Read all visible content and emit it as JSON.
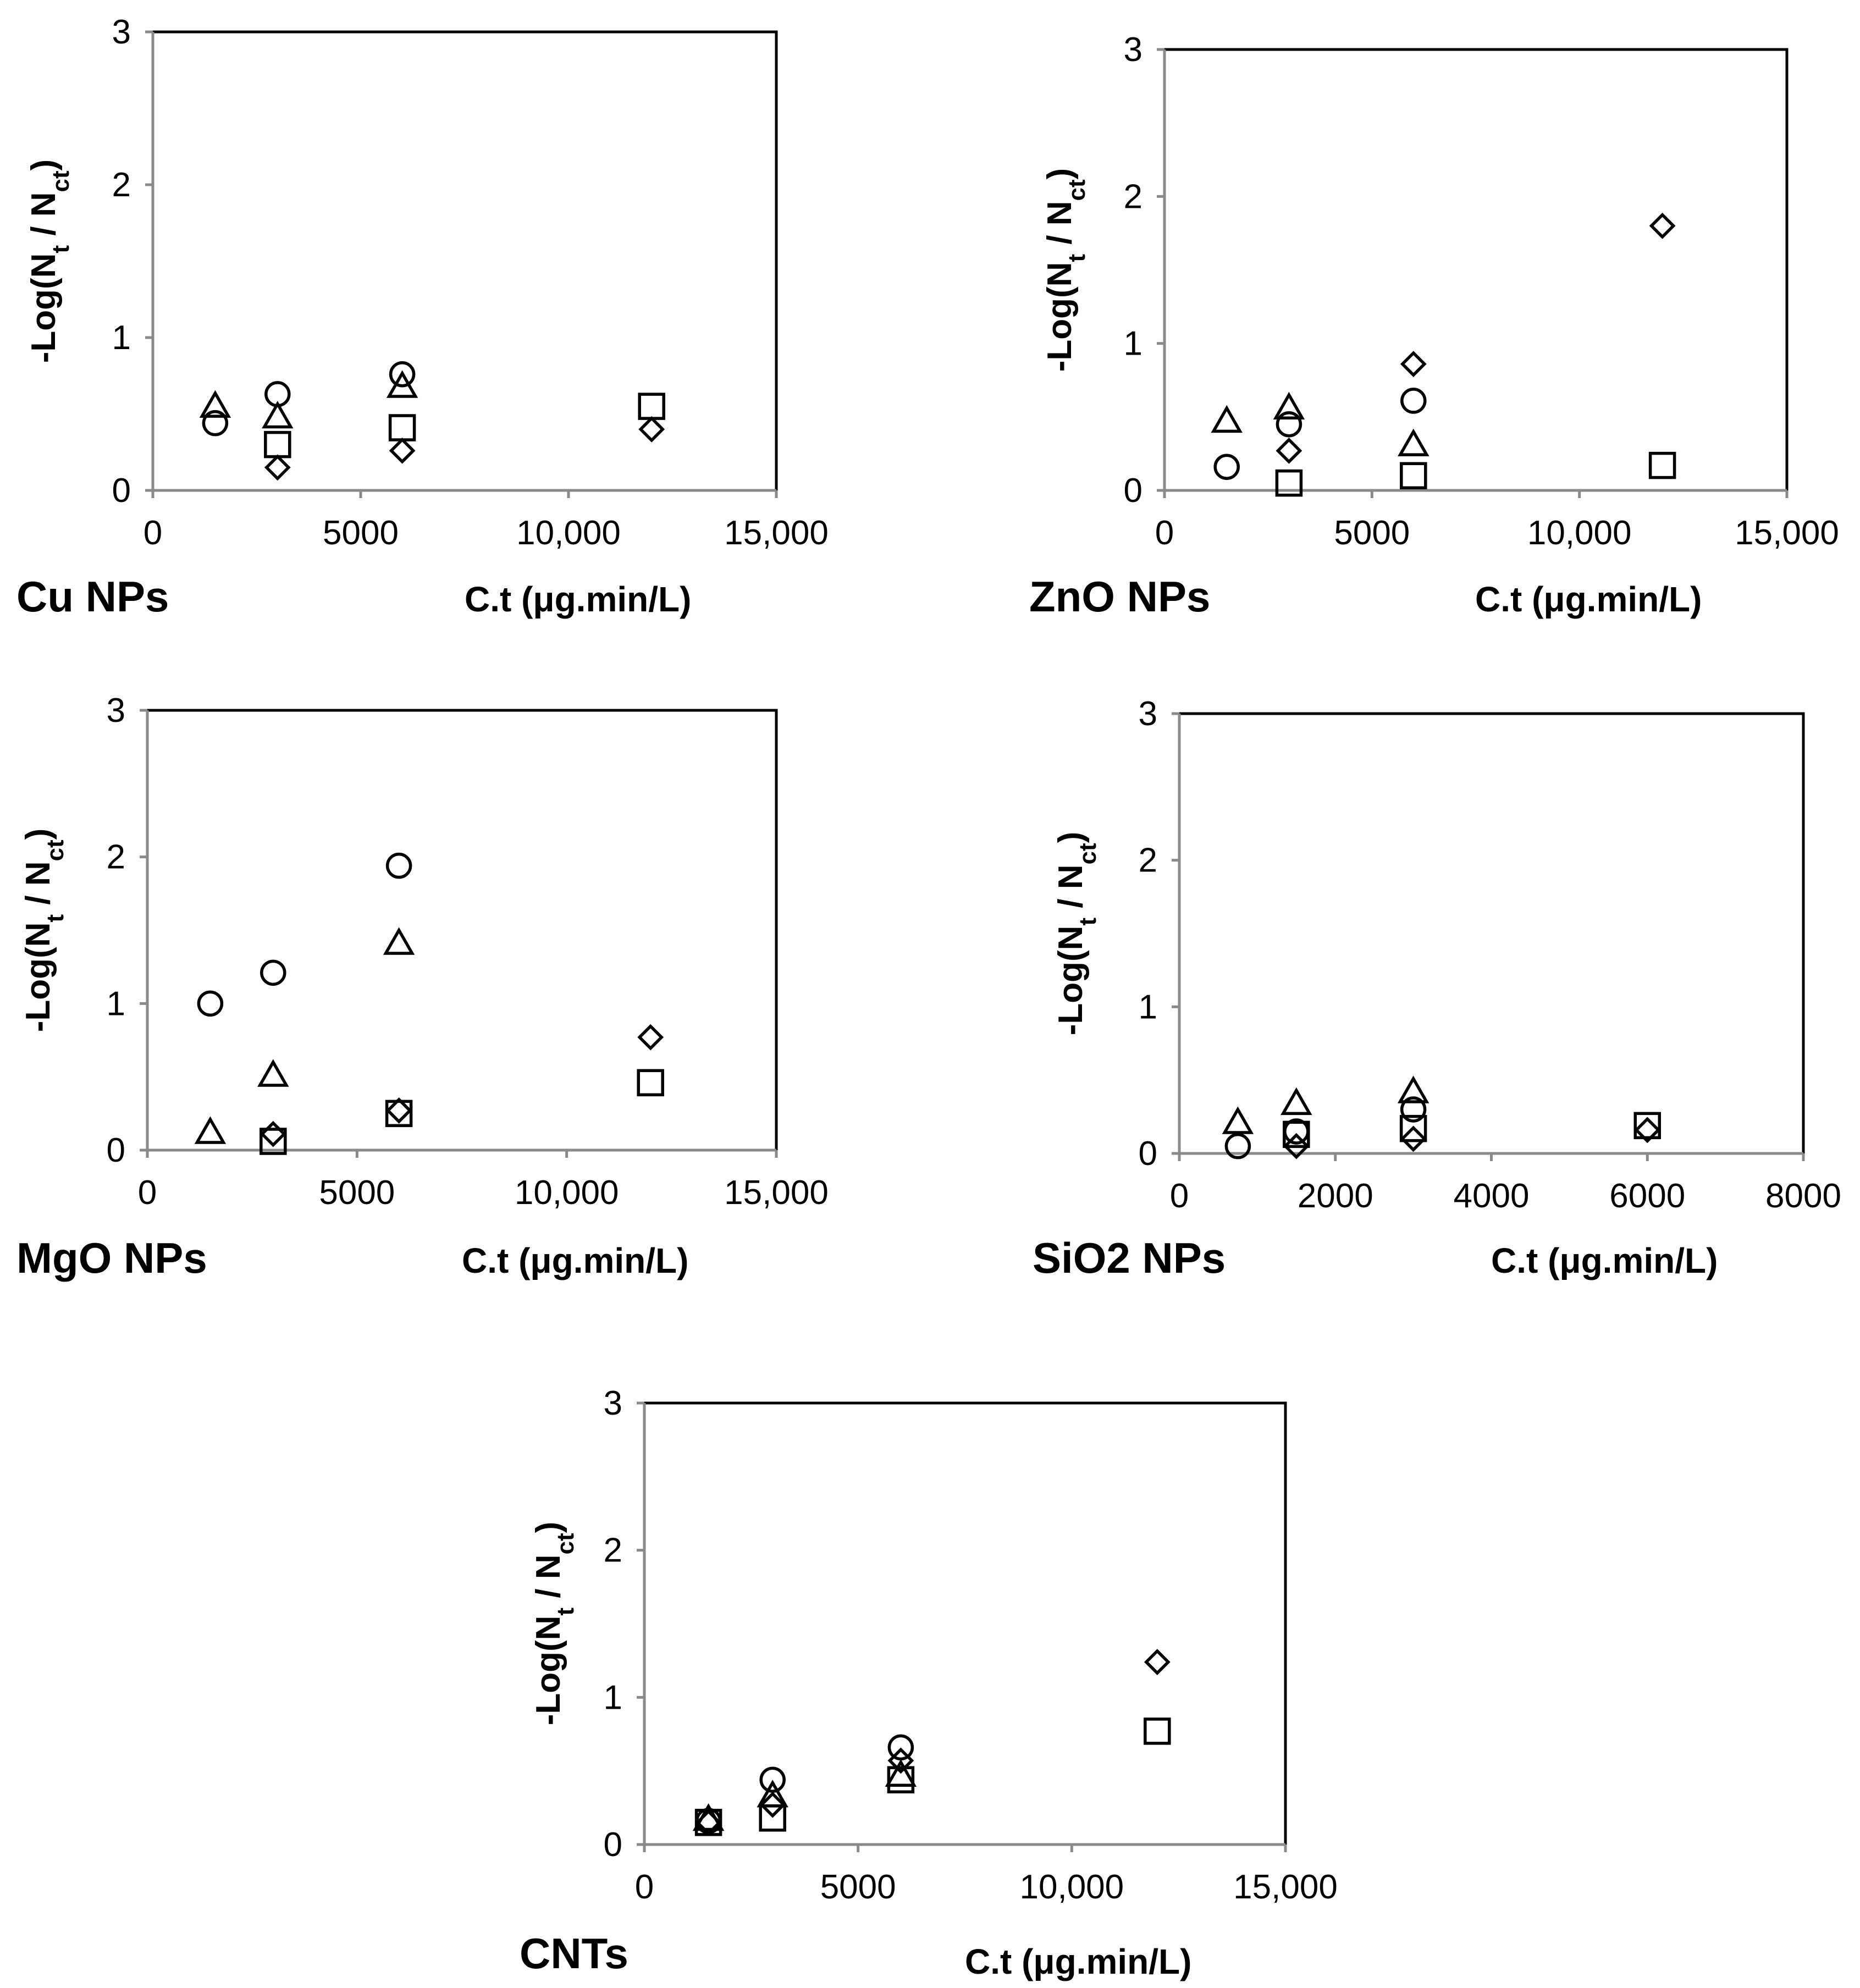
{
  "chart_data": [
    {
      "type": "scatter",
      "panel_label": "Cu NPs",
      "xlabel": "C.t (μg.min/L)",
      "ylabel_main": "-Log(N",
      "ylabel_sub1": "t",
      "ylabel_mid": " / N",
      "ylabel_sub2": "ct",
      "ylabel_end": ")",
      "xlim": [
        0,
        15000
      ],
      "ylim": [
        0,
        3
      ],
      "xticks": [
        0,
        5000,
        10000,
        15000
      ],
      "xtick_labels": [
        "0",
        "5000",
        "10,000",
        "15,000"
      ],
      "yticks": [
        0,
        1,
        2,
        3
      ],
      "ytick_labels": [
        "0",
        "1",
        "2",
        "3"
      ],
      "series": [
        {
          "name": "circle",
          "marker": "circle",
          "x": [
            1500,
            3000,
            6000
          ],
          "y": [
            0.44,
            0.63,
            0.76
          ]
        },
        {
          "name": "triangle",
          "marker": "triangle",
          "x": [
            1500,
            3000,
            6000
          ],
          "y": [
            0.55,
            0.48,
            0.68
          ]
        },
        {
          "name": "square",
          "marker": "square",
          "x": [
            3000,
            6000,
            12000
          ],
          "y": [
            0.3,
            0.41,
            0.55
          ]
        },
        {
          "name": "diamond",
          "marker": "diamond",
          "x": [
            3000,
            6000,
            12000
          ],
          "y": [
            0.15,
            0.26,
            0.4
          ]
        }
      ]
    },
    {
      "type": "scatter",
      "panel_label": "ZnO NPs",
      "xlabel": "C.t (μg.min/L)",
      "ylabel_main": "-Log(N",
      "ylabel_sub1": "t",
      "ylabel_mid": " / N",
      "ylabel_sub2": "ct",
      "ylabel_end": ")",
      "xlim": [
        0,
        15000
      ],
      "ylim": [
        0,
        3
      ],
      "xticks": [
        0,
        5000,
        10000,
        15000
      ],
      "xtick_labels": [
        "0",
        "5000",
        "10,000",
        "15,000"
      ],
      "yticks": [
        0,
        1,
        2,
        3
      ],
      "ytick_labels": [
        "0",
        "1",
        "2",
        "3"
      ],
      "series": [
        {
          "name": "circle",
          "marker": "circle",
          "x": [
            1500,
            3000,
            6000
          ],
          "y": [
            0.16,
            0.45,
            0.61
          ]
        },
        {
          "name": "triangle",
          "marker": "triangle",
          "x": [
            1500,
            3000,
            6000
          ],
          "y": [
            0.47,
            0.56,
            0.31
          ]
        },
        {
          "name": "square",
          "marker": "square",
          "x": [
            3000,
            6000,
            12000
          ],
          "y": [
            0.05,
            0.1,
            0.17
          ]
        },
        {
          "name": "diamond",
          "marker": "diamond",
          "x": [
            3000,
            6000,
            12000
          ],
          "y": [
            0.27,
            0.86,
            1.8
          ]
        }
      ]
    },
    {
      "type": "scatter",
      "panel_label": "MgO NPs",
      "xlabel": "C.t (μg.min/L)",
      "ylabel_main": "-Log(N",
      "ylabel_sub1": "t",
      "ylabel_mid": " / N",
      "ylabel_sub2": "ct",
      "ylabel_end": ")",
      "xlim": [
        0,
        15000
      ],
      "ylim": [
        0,
        3
      ],
      "xticks": [
        0,
        5000,
        10000,
        15000
      ],
      "xtick_labels": [
        "0",
        "5000",
        "10,000",
        "15,000"
      ],
      "yticks": [
        0,
        1,
        2,
        3
      ],
      "ytick_labels": [
        "0",
        "1",
        "2",
        "3"
      ],
      "series": [
        {
          "name": "circle",
          "marker": "circle",
          "x": [
            1500,
            3000,
            6000
          ],
          "y": [
            1.0,
            1.21,
            1.94
          ]
        },
        {
          "name": "triangle",
          "marker": "triangle",
          "x": [
            1500,
            3000,
            6000
          ],
          "y": [
            0.12,
            0.51,
            1.41
          ]
        },
        {
          "name": "square",
          "marker": "square",
          "x": [
            3000,
            6000,
            12000
          ],
          "y": [
            0.06,
            0.25,
            0.46
          ]
        },
        {
          "name": "diamond",
          "marker": "diamond",
          "x": [
            3000,
            6000,
            12000
          ],
          "y": [
            0.11,
            0.27,
            0.77
          ]
        }
      ]
    },
    {
      "type": "scatter",
      "panel_label": "SiO2 NPs",
      "xlabel": "C.t (μg.min/L)",
      "ylabel_main": "-Log(N",
      "ylabel_sub1": "t",
      "ylabel_mid": " / N",
      "ylabel_sub2": "ct",
      "ylabel_end": ")",
      "xlim": [
        0,
        8000
      ],
      "ylim": [
        0,
        3
      ],
      "xticks": [
        0,
        2000,
        4000,
        6000,
        8000
      ],
      "xtick_labels": [
        "0",
        "2000",
        "4000",
        "6000",
        "8000"
      ],
      "yticks": [
        0,
        1,
        2,
        3
      ],
      "ytick_labels": [
        "0",
        "1",
        "2",
        "3"
      ],
      "series": [
        {
          "name": "circle",
          "marker": "circle",
          "x": [
            750,
            1500,
            3000
          ],
          "y": [
            0.05,
            0.15,
            0.3
          ]
        },
        {
          "name": "triangle",
          "marker": "triangle",
          "x": [
            750,
            1500,
            3000
          ],
          "y": [
            0.21,
            0.34,
            0.42
          ]
        },
        {
          "name": "square",
          "marker": "square",
          "x": [
            1500,
            3000,
            6000
          ],
          "y": [
            0.13,
            0.17,
            0.19
          ]
        },
        {
          "name": "diamond",
          "marker": "diamond",
          "x": [
            1500,
            3000,
            6000
          ],
          "y": [
            0.05,
            0.1,
            0.16
          ]
        }
      ]
    },
    {
      "type": "scatter",
      "panel_label": "CNTs",
      "xlabel": "C.t (μg.min/L)",
      "ylabel_main": "-Log(N",
      "ylabel_sub1": "t",
      "ylabel_mid": " / N",
      "ylabel_sub2": "ct",
      "ylabel_end": ")",
      "xlim": [
        0,
        15000
      ],
      "ylim": [
        0,
        3
      ],
      "xticks": [
        0,
        5000,
        10000,
        15000
      ],
      "xtick_labels": [
        "0",
        "5000",
        "10,000",
        "15,000"
      ],
      "yticks": [
        0,
        1,
        2,
        3
      ],
      "ytick_labels": [
        "0",
        "1",
        "2",
        "3"
      ],
      "series": [
        {
          "name": "circle",
          "marker": "circle",
          "x": [
            1500,
            3000,
            6000
          ],
          "y": [
            0.16,
            0.44,
            0.66
          ]
        },
        {
          "name": "triangle",
          "marker": "triangle",
          "x": [
            1500,
            3000,
            6000
          ],
          "y": [
            0.17,
            0.33,
            0.47
          ]
        },
        {
          "name": "square",
          "marker": "square",
          "x": [
            1500,
            3000,
            6000,
            12000
          ],
          "y": [
            0.15,
            0.18,
            0.44,
            0.77
          ]
        },
        {
          "name": "diamond",
          "marker": "diamond",
          "x": [
            1500,
            3000,
            6000,
            12000
          ],
          "y": [
            0.15,
            0.27,
            0.57,
            1.24
          ]
        }
      ]
    }
  ]
}
